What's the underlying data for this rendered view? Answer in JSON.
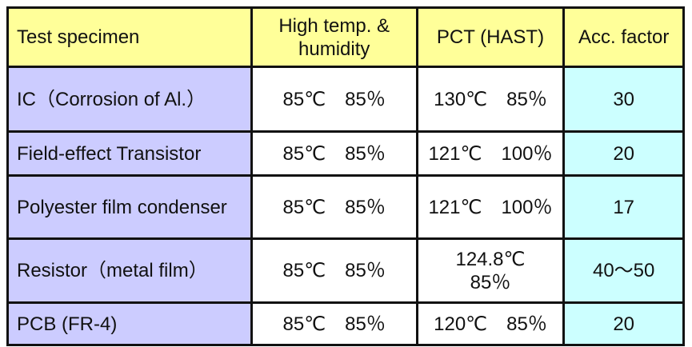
{
  "headers": [
    "Test specimen",
    "High temp. & humidity",
    "PCT (HAST)",
    "Acc. factor"
  ],
  "rows": [
    {
      "specimen": "IC（Corrosion of Al.）",
      "high_temp_humidity": "85℃　85％",
      "pct_hast": "130℃　85％",
      "acc_factor": "30"
    },
    {
      "specimen": "Field-effect Transistor",
      "high_temp_humidity": "85℃　85％",
      "pct_hast": "121℃　100％",
      "acc_factor": "20"
    },
    {
      "specimen": "Polyester film condenser",
      "high_temp_humidity": "85℃　85％",
      "pct_hast": "121℃　100％",
      "acc_factor": "17"
    },
    {
      "specimen": "Resistor（metal film）",
      "high_temp_humidity": "85℃　85％",
      "pct_hast": "124.8℃　85％",
      "acc_factor": "40～50"
    },
    {
      "specimen": "PCB (FR-4)",
      "high_temp_humidity": "85℃　85％",
      "pct_hast": "120℃　85％",
      "acc_factor": "20"
    }
  ],
  "colors": {
    "header": "#ffff99",
    "specimen_column": "#ccccff",
    "acc_factor_column": "#ccffff",
    "border": "#111111"
  }
}
